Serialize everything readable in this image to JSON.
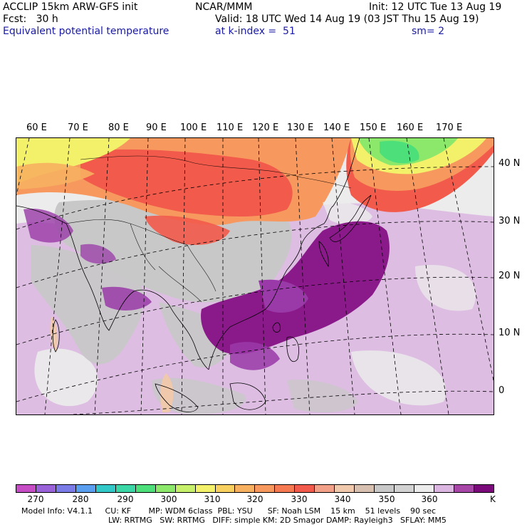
{
  "header": {
    "model": "ACCLIP 15km ARW-GFS init",
    "org": "NCAR/MMM",
    "init": "Init: 12 UTC Tue 13 Aug 19",
    "fcst": "Fcst:   30 h",
    "valid": "Valid: 18 UTC Wed 14 Aug 19 (03 JST Thu 15 Aug 19)",
    "field": "Equivalent potential temperature",
    "level": "at k-index =  51",
    "smooth": "sm= 2"
  },
  "map": {
    "lon_labels": [
      "60 E",
      "70 E",
      "80 E",
      "90 E",
      "100 E",
      "110 E",
      "120 E",
      "130 E",
      "140 E",
      "150 E",
      "160 E",
      "170 E"
    ],
    "lat_labels": [
      "40 N",
      "30 N",
      "20 N",
      "10 N",
      "0"
    ],
    "colors": {
      "ocean": "#ececec",
      "land_gray": "#c8c8c8",
      "hot_red": "#f25a4b",
      "orange": "#f7995e",
      "light_purple": "#dbb6e0",
      "mid_purple": "#9a3aa8",
      "dark_purple": "#8a1a8a",
      "green": "#4de07a",
      "yellow": "#f3f06a"
    }
  },
  "colorbar": {
    "colors": [
      "#c64cc6",
      "#9a62d8",
      "#7b7be8",
      "#5a9ef0",
      "#32c8c8",
      "#3ad6a6",
      "#4de07a",
      "#8ce86a",
      "#c6f06a",
      "#f3f06a",
      "#f8d060",
      "#f7b060",
      "#f7995e",
      "#f57a52",
      "#f25a4b",
      "#f2a088",
      "#f0c8ac",
      "#d8c0b0",
      "#c8c8c8",
      "#d2d2d2",
      "#ececec",
      "#dbb6e0",
      "#a846a8",
      "#7a0a7a"
    ],
    "ticks": [
      "270",
      "280",
      "290",
      "300",
      "310",
      "320",
      "330",
      "340",
      "350",
      "360"
    ],
    "unit": "K"
  },
  "footer": {
    "line1": "Model Info: V4.1.1     CU: KF       MP: WDM 6class  PBL: YSU      SF: Noah LSM    15 km    51 levels    90 sec",
    "line2": "LW: RRTMG   SW: RRTMG   DIFF: simple KM: 2D Smagor DAMP: Rayleigh3   SFLAY: MM5"
  }
}
